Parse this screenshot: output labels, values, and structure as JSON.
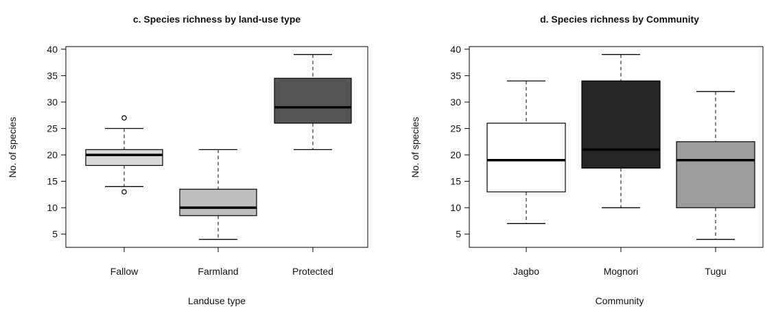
{
  "chart_data": [
    {
      "type": "boxplot",
      "title": "c. Species richness by land-use type",
      "xlabel": "Landuse type",
      "ylabel": "No. of species",
      "ylim": [
        2.5,
        40.5
      ],
      "yticks": [
        5,
        10,
        15,
        20,
        25,
        30,
        35,
        40
      ],
      "grid": false,
      "categories": [
        "Fallow",
        "Farmland",
        "Protected"
      ],
      "boxes": [
        {
          "category": "Fallow",
          "whisker_low": 14,
          "q1": 18,
          "median": 20,
          "q3": 21,
          "whisker_high": 25,
          "outliers": [
            13,
            27
          ],
          "fill": "#d9d9d9"
        },
        {
          "category": "Farmland",
          "whisker_low": 4,
          "q1": 8.5,
          "median": 10,
          "q3": 13.5,
          "whisker_high": 21,
          "outliers": [],
          "fill": "#bdbdbd"
        },
        {
          "category": "Protected",
          "whisker_low": 21,
          "q1": 26,
          "median": 29,
          "q3": 34.5,
          "whisker_high": 39,
          "outliers": [],
          "fill": "#555555"
        }
      ]
    },
    {
      "type": "boxplot",
      "title": "d. Species richness by Community",
      "xlabel": "Community",
      "ylabel": "No. of species",
      "ylim": [
        2.5,
        40.5
      ],
      "yticks": [
        5,
        10,
        15,
        20,
        25,
        30,
        35,
        40
      ],
      "grid": false,
      "categories": [
        "Jagbo",
        "Mognori",
        "Tugu"
      ],
      "boxes": [
        {
          "category": "Jagbo",
          "whisker_low": 7,
          "q1": 13,
          "median": 19,
          "q3": 26,
          "whisker_high": 34,
          "outliers": [],
          "fill": "#ffffff"
        },
        {
          "category": "Mognori",
          "whisker_low": 10,
          "q1": 17.5,
          "median": 21,
          "q3": 34,
          "whisker_high": 39,
          "outliers": [],
          "fill": "#262626"
        },
        {
          "category": "Tugu",
          "whisker_low": 4,
          "q1": 10,
          "median": 19,
          "q3": 22.5,
          "whisker_high": 32,
          "outliers": [],
          "fill": "#9c9c9c"
        }
      ]
    }
  ]
}
